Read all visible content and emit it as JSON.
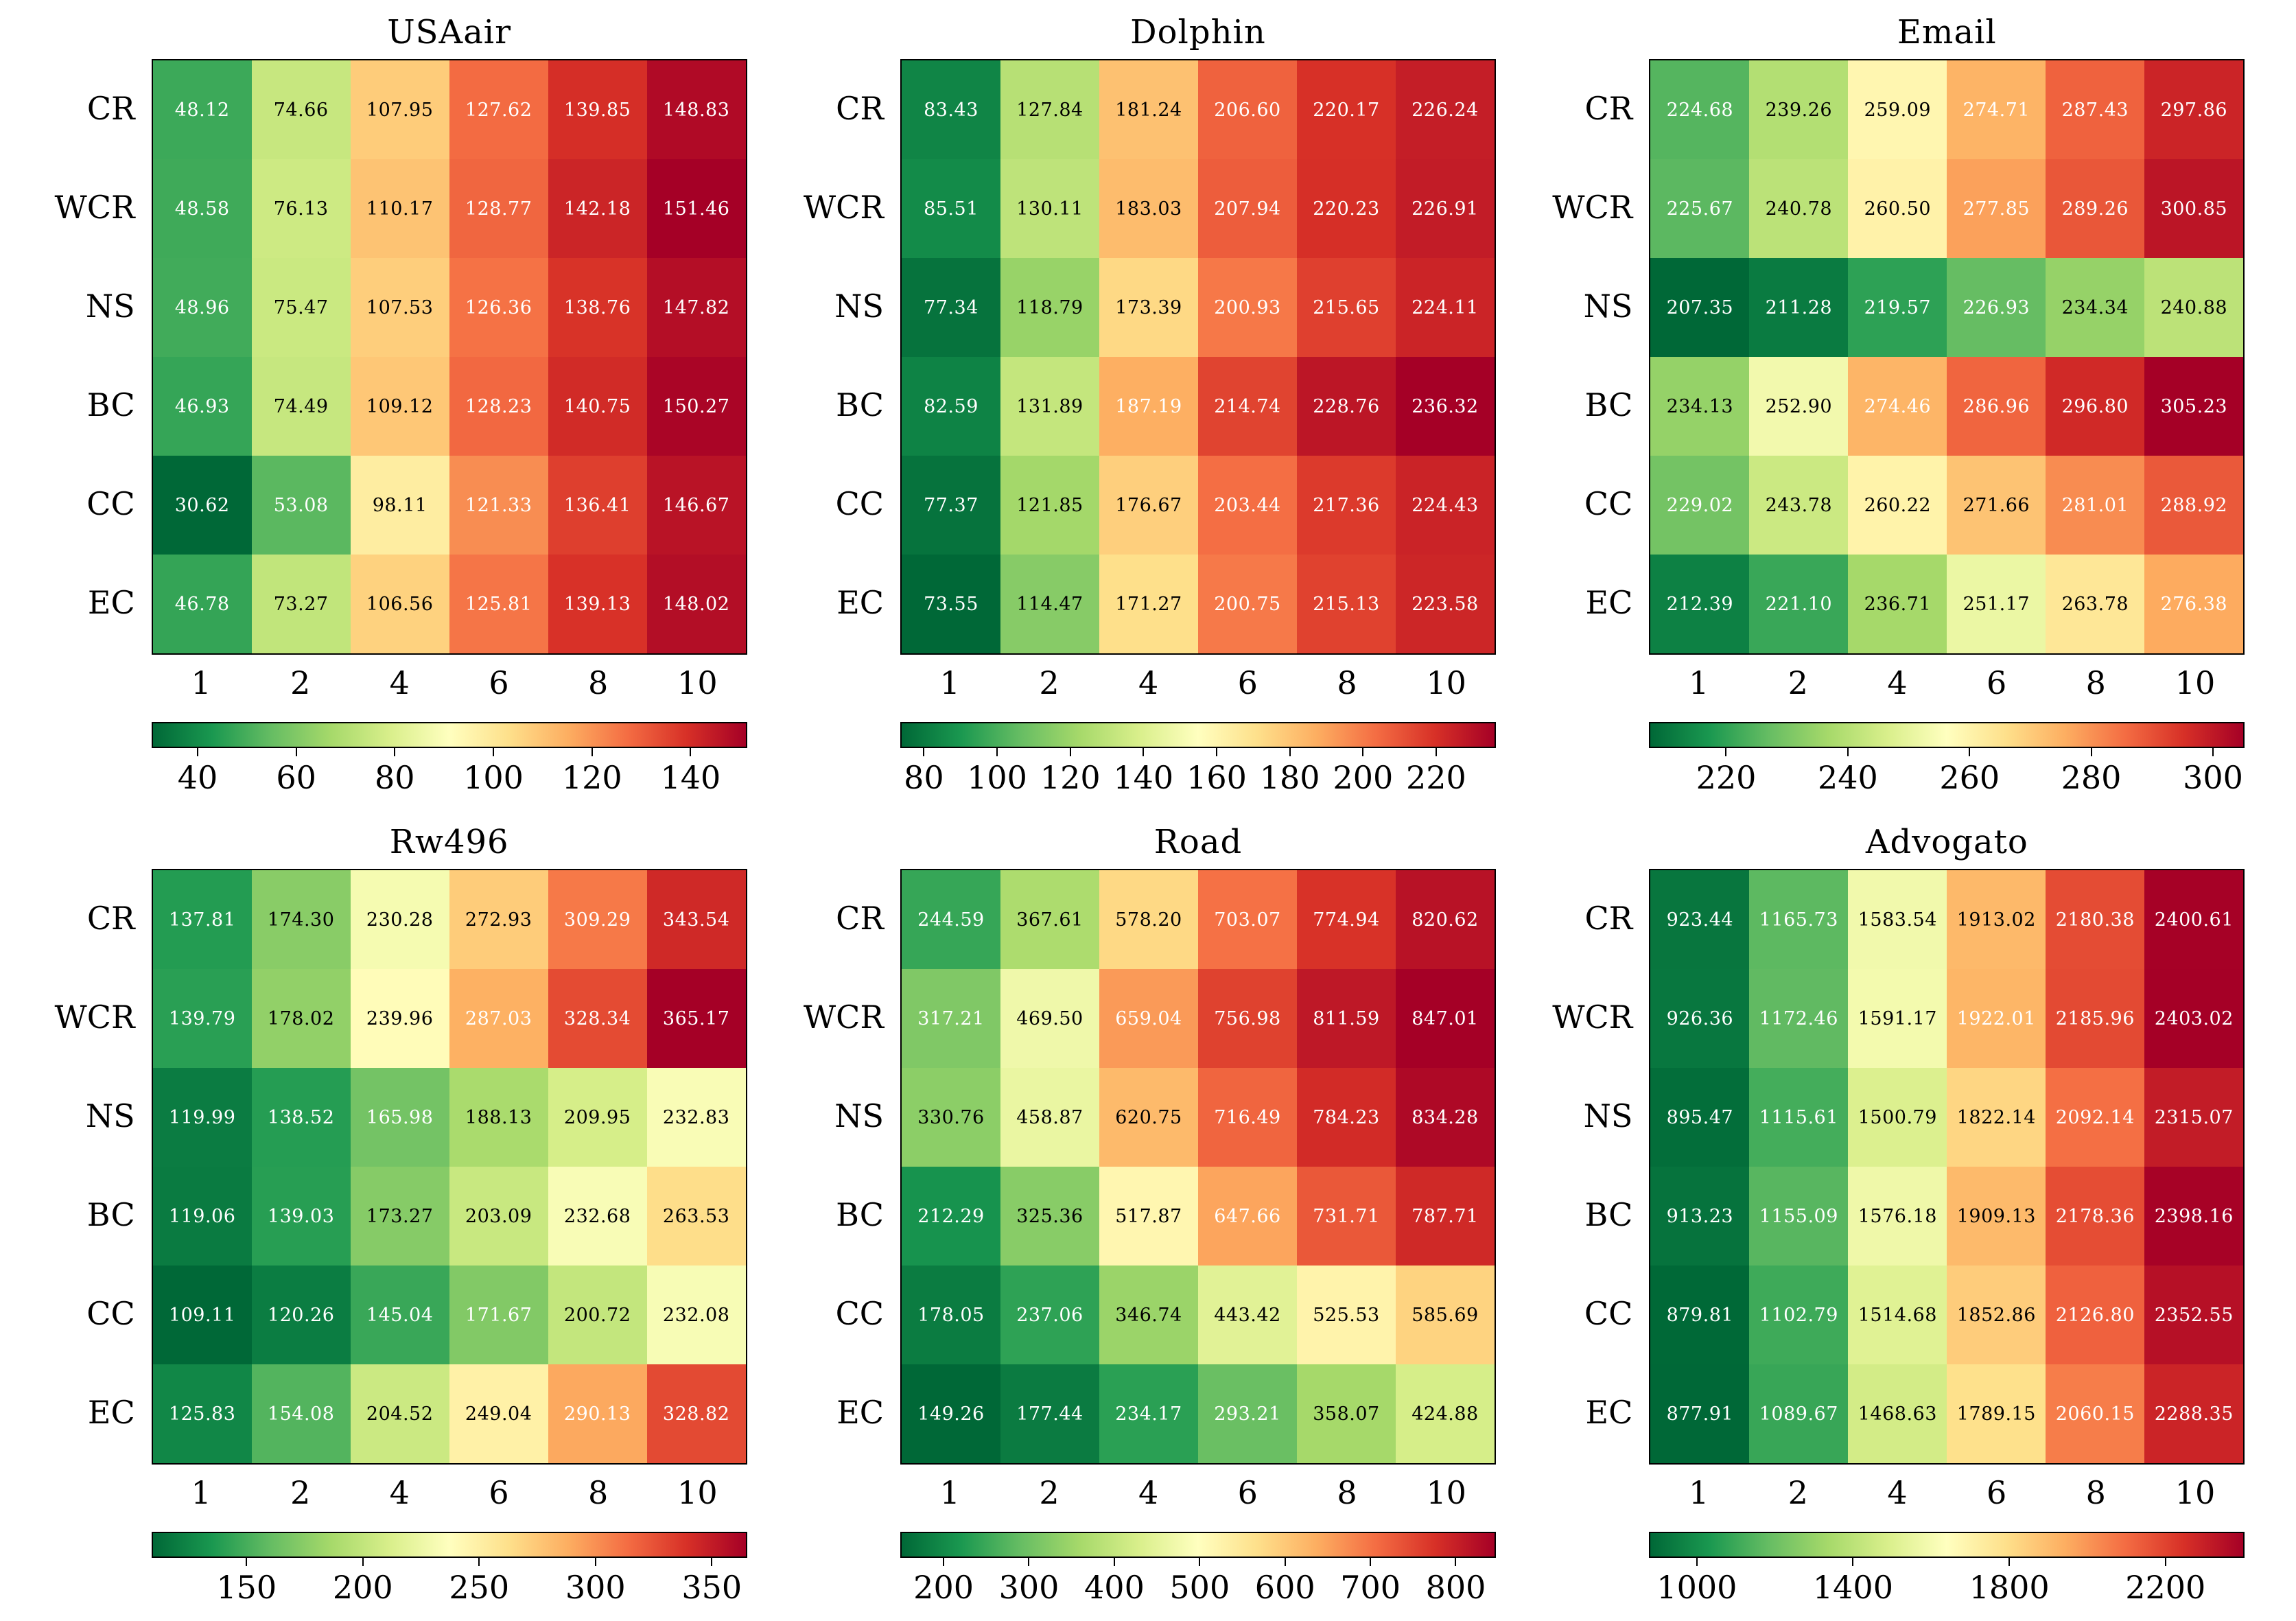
{
  "chart_data": {
    "type": "heatmap",
    "layout": "2x3-grid",
    "colormap": "RdYlGn_r",
    "colormap_colors": [
      "#006837",
      "#1a9850",
      "#66bd63",
      "#a6d96a",
      "#d9ef8b",
      "#ffffbf",
      "#fee08b",
      "#fdae61",
      "#f46d43",
      "#d73027",
      "#a50026"
    ],
    "cell_text_light": "#ffffff",
    "cell_text_dark": "#000000",
    "rows": [
      "CR",
      "WCR",
      "NS",
      "BC",
      "CC",
      "EC"
    ],
    "columns": [
      "1",
      "2",
      "4",
      "6",
      "8",
      "10"
    ],
    "panels": [
      {
        "title": "USAair",
        "colorbar_ticks": [
          40,
          60,
          80,
          100,
          120,
          140
        ],
        "values": [
          [
            48.12,
            74.66,
            107.95,
            127.62,
            139.85,
            148.83
          ],
          [
            48.58,
            76.13,
            110.17,
            128.77,
            142.18,
            151.46
          ],
          [
            48.96,
            75.47,
            107.53,
            126.36,
            138.76,
            147.82
          ],
          [
            46.93,
            74.49,
            109.12,
            128.23,
            140.75,
            150.27
          ],
          [
            30.62,
            53.08,
            98.11,
            121.33,
            136.41,
            146.67
          ],
          [
            46.78,
            73.27,
            106.56,
            125.81,
            139.13,
            148.02
          ]
        ]
      },
      {
        "title": "Dolphin",
        "colorbar_ticks": [
          80,
          100,
          120,
          140,
          160,
          180,
          200,
          220
        ],
        "values": [
          [
            83.43,
            127.84,
            181.24,
            206.6,
            220.17,
            226.24
          ],
          [
            85.51,
            130.11,
            183.03,
            207.94,
            220.23,
            226.91
          ],
          [
            77.34,
            118.79,
            173.39,
            200.93,
            215.65,
            224.11
          ],
          [
            82.59,
            131.89,
            187.19,
            214.74,
            228.76,
            236.32
          ],
          [
            77.37,
            121.85,
            176.67,
            203.44,
            217.36,
            224.43
          ],
          [
            73.55,
            114.47,
            171.27,
            200.75,
            215.13,
            223.58
          ]
        ]
      },
      {
        "title": "Email",
        "colorbar_ticks": [
          220,
          240,
          260,
          280,
          300
        ],
        "values": [
          [
            224.68,
            239.26,
            259.09,
            274.71,
            287.43,
            297.86
          ],
          [
            225.67,
            240.78,
            260.5,
            277.85,
            289.26,
            300.85
          ],
          [
            207.35,
            211.28,
            219.57,
            226.93,
            234.34,
            240.88
          ],
          [
            234.13,
            252.9,
            274.46,
            286.96,
            296.8,
            305.23
          ],
          [
            229.02,
            243.78,
            260.22,
            271.66,
            281.01,
            288.92
          ],
          [
            212.39,
            221.1,
            236.71,
            251.17,
            263.78,
            276.38
          ]
        ]
      },
      {
        "title": "Rw496",
        "colorbar_ticks": [
          150,
          200,
          250,
          300,
          350
        ],
        "values": [
          [
            137.81,
            174.3,
            230.28,
            272.93,
            309.29,
            343.54
          ],
          [
            139.79,
            178.02,
            239.96,
            287.03,
            328.34,
            365.17
          ],
          [
            119.99,
            138.52,
            165.98,
            188.13,
            209.95,
            232.83
          ],
          [
            119.06,
            139.03,
            173.27,
            203.09,
            232.68,
            263.53
          ],
          [
            109.11,
            120.26,
            145.04,
            171.67,
            200.72,
            232.08
          ],
          [
            125.83,
            154.08,
            204.52,
            249.04,
            290.13,
            328.82
          ]
        ]
      },
      {
        "title": "Road",
        "colorbar_ticks": [
          200,
          300,
          400,
          500,
          600,
          700,
          800
        ],
        "values": [
          [
            244.59,
            367.61,
            578.2,
            703.07,
            774.94,
            820.62
          ],
          [
            317.21,
            469.5,
            659.04,
            756.98,
            811.59,
            847.01
          ],
          [
            330.76,
            458.87,
            620.75,
            716.49,
            784.23,
            834.28
          ],
          [
            212.29,
            325.36,
            517.87,
            647.66,
            731.71,
            787.71
          ],
          [
            178.05,
            237.06,
            346.74,
            443.42,
            525.53,
            585.69
          ],
          [
            149.26,
            177.44,
            234.17,
            293.21,
            358.07,
            424.88
          ]
        ]
      },
      {
        "title": "Advogato",
        "colorbar_ticks": [
          1000,
          1400,
          1800,
          2200
        ],
        "values": [
          [
            923.44,
            1165.73,
            1583.54,
            1913.02,
            2180.38,
            2400.61
          ],
          [
            926.36,
            1172.46,
            1591.17,
            1922.01,
            2185.96,
            2403.02
          ],
          [
            895.47,
            1115.61,
            1500.79,
            1822.14,
            2092.14,
            2315.07
          ],
          [
            913.23,
            1155.09,
            1576.18,
            1909.13,
            2178.36,
            2398.16
          ],
          [
            879.81,
            1102.79,
            1514.68,
            1852.86,
            2126.8,
            2352.55
          ],
          [
            877.91,
            1089.67,
            1468.63,
            1789.15,
            2060.15,
            2288.35
          ]
        ]
      }
    ]
  }
}
